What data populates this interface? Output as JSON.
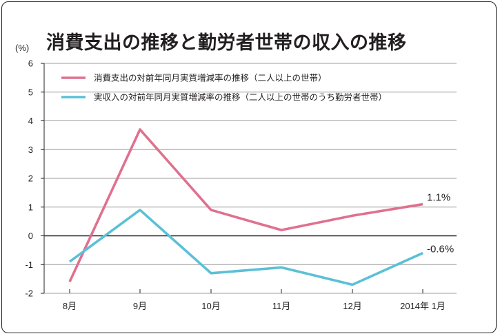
{
  "title": "消費支出の推移と勤労者世帯の収入の推移",
  "unit_label": "(%)",
  "chart_data": {
    "type": "line",
    "title": "消費支出の推移と勤労者世帯の収入の推移",
    "ylabel": "(%)",
    "xlabel": "",
    "categories": [
      "8月",
      "9月",
      "10月",
      "11月",
      "12月",
      "2014年 1月"
    ],
    "yticks": [
      "6",
      "5",
      "4",
      "3",
      "2",
      "1",
      "0",
      "-1",
      "-2"
    ],
    "ylim": [
      -2,
      6
    ],
    "grid": true,
    "legend_position": "top-left",
    "series": [
      {
        "name": "消費支出の対前年同月実質増減率の推移（二人以上の世帯）",
        "values": [
          -1.6,
          3.7,
          0.9,
          0.2,
          0.7,
          1.1
        ],
        "color": "#e0708f",
        "end_label": "1.1%"
      },
      {
        "name": "実収入の対前年同月実質増減率の推移（二人以上の世帯のうち勤労者世帯）",
        "values": [
          -0.9,
          0.9,
          -1.3,
          -1.1,
          -1.7,
          -0.6
        ],
        "color": "#5bc0d6",
        "end_label": "-0.6%"
      }
    ]
  }
}
